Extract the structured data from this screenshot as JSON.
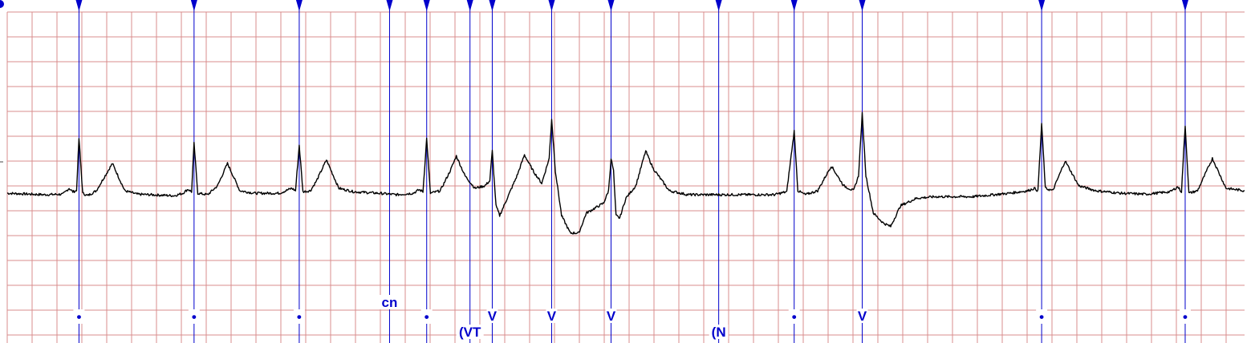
{
  "chart_data": {
    "type": "line",
    "title": "",
    "xlabel": "",
    "ylabel": "",
    "grid": true,
    "colors": {
      "grid": "#d98c8c",
      "trace": "#000000",
      "annotation": "#0000cc",
      "background": "#ffffff"
    },
    "x_range_s": [
      0,
      10
    ],
    "annotations": [
      {
        "t": 0.58,
        "label": "•"
      },
      {
        "t": 1.51,
        "label": "•"
      },
      {
        "t": 2.36,
        "label": "•"
      },
      {
        "t": 3.09,
        "label": "cn"
      },
      {
        "t": 3.39,
        "label": "•"
      },
      {
        "t": 3.74,
        "label": "(VT"
      },
      {
        "t": 3.92,
        "label": "V"
      },
      {
        "t": 4.4,
        "label": "V"
      },
      {
        "t": 4.88,
        "label": "V"
      },
      {
        "t": 5.75,
        "label": "(N"
      },
      {
        "t": 6.36,
        "label": "•"
      },
      {
        "t": 6.91,
        "label": "V"
      },
      {
        "t": 8.36,
        "label": "•"
      },
      {
        "t": 9.52,
        "label": "•"
      }
    ],
    "series": [
      {
        "values": [
          [
            0.0,
            -0.05
          ],
          [
            0.3,
            -0.08
          ],
          [
            0.45,
            -0.07
          ],
          [
            0.5,
            0.05
          ],
          [
            0.53,
            -0.02
          ],
          [
            0.56,
            0.0
          ],
          [
            0.58,
            1.05
          ],
          [
            0.61,
            -0.05
          ],
          [
            0.65,
            -0.1
          ],
          [
            0.72,
            0.0
          ],
          [
            0.85,
            0.55
          ],
          [
            0.95,
            0.0
          ],
          [
            1.05,
            -0.07
          ],
          [
            1.35,
            -0.1
          ],
          [
            1.42,
            -0.05
          ],
          [
            1.46,
            0.03
          ],
          [
            1.49,
            -0.02
          ],
          [
            1.51,
            0.95
          ],
          [
            1.54,
            -0.05
          ],
          [
            1.62,
            -0.08
          ],
          [
            1.7,
            0.1
          ],
          [
            1.78,
            0.55
          ],
          [
            1.88,
            0.0
          ],
          [
            2.0,
            -0.05
          ],
          [
            2.2,
            -0.05
          ],
          [
            2.3,
            0.05
          ],
          [
            2.33,
            0.0
          ],
          [
            2.36,
            0.92
          ],
          [
            2.39,
            -0.02
          ],
          [
            2.45,
            0.0
          ],
          [
            2.5,
            0.2
          ],
          [
            2.58,
            0.62
          ],
          [
            2.68,
            0.05
          ],
          [
            2.8,
            -0.02
          ],
          [
            3.0,
            -0.05
          ],
          [
            3.15,
            -0.08
          ],
          [
            3.28,
            -0.05
          ],
          [
            3.33,
            0.02
          ],
          [
            3.36,
            -0.02
          ],
          [
            3.39,
            1.05
          ],
          [
            3.42,
            -0.05
          ],
          [
            3.5,
            0.0
          ],
          [
            3.58,
            0.4
          ],
          [
            3.63,
            0.7
          ],
          [
            3.7,
            0.3
          ],
          [
            3.78,
            0.05
          ],
          [
            3.86,
            0.1
          ],
          [
            3.9,
            0.2
          ],
          [
            3.92,
            0.8
          ],
          [
            3.95,
            -0.3
          ],
          [
            3.98,
            -0.5
          ],
          [
            4.05,
            -0.1
          ],
          [
            4.12,
            0.3
          ],
          [
            4.18,
            0.72
          ],
          [
            4.25,
            0.4
          ],
          [
            4.32,
            0.15
          ],
          [
            4.38,
            0.65
          ],
          [
            4.4,
            1.45
          ],
          [
            4.43,
            0.4
          ],
          [
            4.48,
            -0.5
          ],
          [
            4.55,
            -0.85
          ],
          [
            4.62,
            -0.85
          ],
          [
            4.68,
            -0.45
          ],
          [
            4.75,
            -0.35
          ],
          [
            4.82,
            -0.25
          ],
          [
            4.86,
            0.0
          ],
          [
            4.88,
            0.65
          ],
          [
            4.9,
            0.4
          ],
          [
            4.92,
            -0.5
          ],
          [
            4.95,
            -0.55
          ],
          [
            5.0,
            -0.15
          ],
          [
            5.08,
            0.1
          ],
          [
            5.16,
            0.8
          ],
          [
            5.22,
            0.45
          ],
          [
            5.35,
            0.0
          ],
          [
            5.5,
            -0.08
          ],
          [
            5.75,
            -0.08
          ],
          [
            6.0,
            -0.08
          ],
          [
            6.2,
            -0.08
          ],
          [
            6.3,
            -0.02
          ],
          [
            6.36,
            1.2
          ],
          [
            6.39,
            0.0
          ],
          [
            6.45,
            -0.08
          ],
          [
            6.55,
            0.0
          ],
          [
            6.66,
            0.5
          ],
          [
            6.76,
            0.1
          ],
          [
            6.84,
            0.0
          ],
          [
            6.88,
            0.3
          ],
          [
            6.91,
            1.55
          ],
          [
            6.94,
            0.3
          ],
          [
            7.0,
            -0.45
          ],
          [
            7.08,
            -0.65
          ],
          [
            7.14,
            -0.72
          ],
          [
            7.22,
            -0.3
          ],
          [
            7.35,
            -0.15
          ],
          [
            7.5,
            -0.12
          ],
          [
            7.8,
            -0.12
          ],
          [
            8.1,
            -0.05
          ],
          [
            8.25,
            0.0
          ],
          [
            8.3,
            0.05
          ],
          [
            8.33,
            0.0
          ],
          [
            8.36,
            1.35
          ],
          [
            8.39,
            0.05
          ],
          [
            8.45,
            0.0
          ],
          [
            8.55,
            0.6
          ],
          [
            8.66,
            0.1
          ],
          [
            8.8,
            0.0
          ],
          [
            9.0,
            -0.05
          ],
          [
            9.2,
            -0.07
          ],
          [
            9.4,
            -0.02
          ],
          [
            9.46,
            0.08
          ],
          [
            9.49,
            -0.02
          ],
          [
            9.52,
            1.32
          ],
          [
            9.55,
            -0.05
          ],
          [
            9.62,
            0.0
          ],
          [
            9.74,
            0.65
          ],
          [
            9.85,
            0.05
          ],
          [
            10.0,
            0.0
          ]
        ]
      }
    ]
  }
}
